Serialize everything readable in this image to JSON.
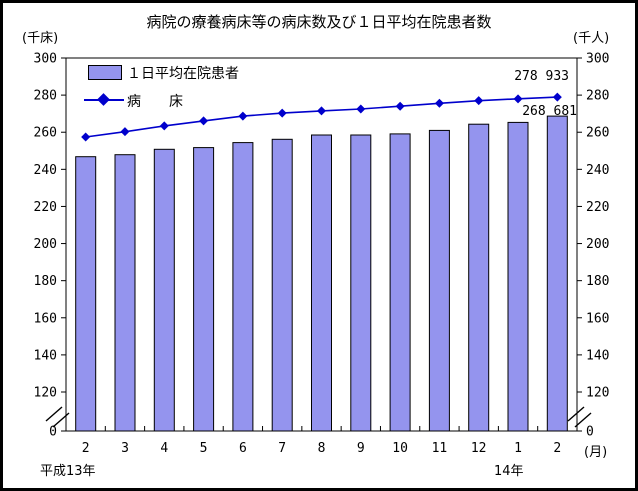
{
  "title": "病院の療養病床等の病床数及び１日平均在院患者数",
  "axis_units": {
    "left": "(千床)",
    "right": "(千人)"
  },
  "legend": {
    "bar_label": "１日平均在院患者",
    "line_label": "病　　床"
  },
  "x_axis": {
    "unit_label": "(月)",
    "era_left": "平成13年",
    "era_right": "14年"
  },
  "chart_data": {
    "type": "bar",
    "title": "病院の療養病床等の病床数及び１日平均在院患者数",
    "categories": [
      "2",
      "3",
      "4",
      "5",
      "6",
      "7",
      "8",
      "9",
      "10",
      "11",
      "12",
      "1",
      "2"
    ],
    "series": [
      {
        "name": "１日平均在院患者",
        "type": "bar",
        "color": "#9494EE",
        "values": [
          246.8,
          247.9,
          250.8,
          251.7,
          254.4,
          256.2,
          258.5,
          258.5,
          259.1,
          261.0,
          264.3,
          265.3,
          268.681
        ]
      },
      {
        "name": "病床",
        "type": "line",
        "color": "#0000CC",
        "values": [
          257.4,
          260.3,
          263.4,
          266.1,
          268.7,
          270.3,
          271.5,
          272.5,
          274.0,
          275.6,
          277.0,
          278.0,
          278.933
        ]
      }
    ],
    "ylabel_left": "(千床)",
    "ylabel_right": "(千人)",
    "y_ticks": [
      300,
      280,
      260,
      240,
      220,
      200,
      180,
      160,
      140,
      120,
      0
    ],
    "ylim_display": [
      120,
      300
    ],
    "axis_break": true,
    "grid": false,
    "legend_position": "top-left-inside",
    "annotations": [
      {
        "text": "278 933",
        "series": "病床",
        "at_category": "2 (14年)"
      },
      {
        "text": "268 681",
        "series": "１日平均在院患者",
        "at_category": "2 (14年)"
      }
    ]
  }
}
